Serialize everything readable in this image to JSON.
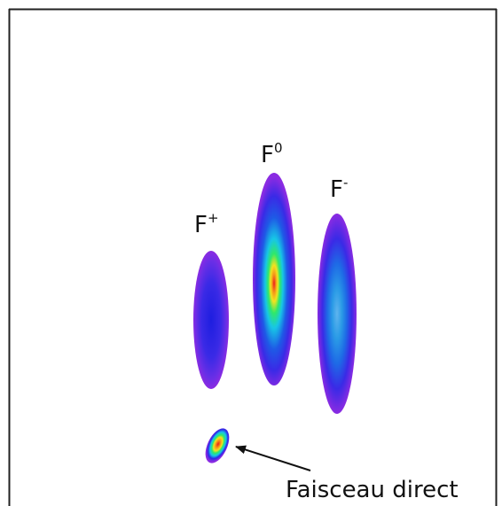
{
  "labels": {
    "f_plus": {
      "base": "F",
      "sup": "+"
    },
    "f_zero": {
      "base": "F",
      "sup": "0"
    },
    "f_minus": {
      "base": "F",
      "sup": "-"
    },
    "direct_beam": "Faisceau direct"
  },
  "colormap": {
    "outer": "#8a2be2",
    "blue": "#2a2ae6",
    "cyan": "#17c6e6",
    "green": "#2fe86a",
    "yellow": "#f2e31f",
    "orange": "#f59a1a",
    "red": "#e81c1c"
  }
}
